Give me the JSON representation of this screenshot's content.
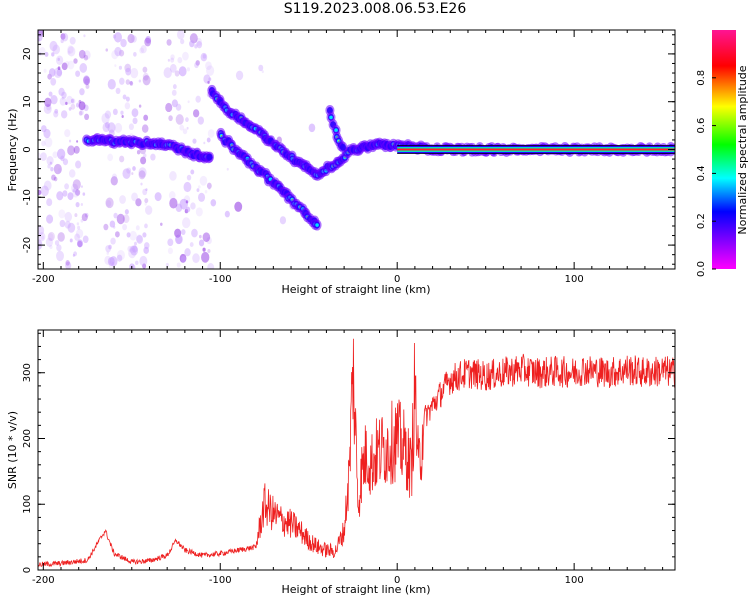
{
  "title": "S119.2023.008.06.53.E26",
  "chart_data": [
    {
      "type": "heatmap",
      "xlabel": "Height of straight line (km)",
      "ylabel": "Frequency (Hz)",
      "xlim": [
        -203,
        157
      ],
      "ylim": [
        -25,
        25
      ],
      "xticks": [
        -200,
        -100,
        0,
        100
      ],
      "yticks": [
        -20,
        -10,
        0,
        10,
        20
      ],
      "grid": false,
      "colorbar": {
        "label": "Normalized spectral amplitude",
        "range": [
          0,
          1
        ],
        "ticks": [
          "0.0",
          "0.2",
          "0.4",
          "0.6",
          "0.8"
        ],
        "colors": [
          "#ff00ff",
          "#8000ff",
          "#0000ff",
          "#00ffff",
          "#00ff00",
          "#ffff00",
          "#ff0000",
          "#ff1493"
        ]
      },
      "ridges": [
        {
          "x": [
            -175,
            -150,
            -130,
            -115,
            -105
          ],
          "y": [
            2,
            1.5,
            1,
            -1,
            -2
          ]
        },
        {
          "x": [
            -105,
            -95,
            -80,
            -65,
            -55,
            -45
          ],
          "y": [
            12,
            8,
            4,
            0,
            -3,
            -5
          ]
        },
        {
          "x": [
            -100,
            -85,
            -70,
            -55,
            -45
          ],
          "y": [
            3,
            -2,
            -7,
            -12,
            -16
          ]
        },
        {
          "x": [
            -45,
            -35,
            -25,
            -10,
            0,
            20,
            50,
            80,
            100,
            157
          ],
          "y": [
            -5,
            -3,
            0,
            1,
            1,
            0,
            0,
            0,
            0,
            0
          ]
        },
        {
          "x": [
            -38,
            -35,
            -30
          ],
          "y": [
            8,
            4,
            0
          ]
        }
      ]
    },
    {
      "type": "line",
      "xlabel": "Height of straight line (km)",
      "ylabel": "SNR (10 * v/v)",
      "xlim": [
        -203,
        157
      ],
      "ylim": [
        0,
        365
      ],
      "xticks": [
        -200,
        -100,
        0,
        100
      ],
      "yticks": [
        0,
        100,
        200,
        300
      ],
      "grid": false,
      "series": [
        {
          "color": "#ee2020",
          "x": [
            -203,
            -190,
            -175,
            -165,
            -160,
            -150,
            -140,
            -130,
            -125,
            -120,
            -110,
            -100,
            -90,
            -80,
            -75,
            -70,
            -65,
            -60,
            -55,
            -50,
            -45,
            -40,
            -35,
            -30,
            -27,
            -25,
            -22,
            -20,
            -17,
            -15,
            -12,
            -10,
            -5,
            0,
            5,
            8,
            10,
            12,
            15,
            20,
            25,
            30,
            40,
            50,
            60,
            70,
            80,
            90,
            100,
            105,
            110,
            120,
            130,
            140,
            150,
            157
          ],
          "y": [
            8,
            10,
            15,
            60,
            25,
            12,
            14,
            22,
            45,
            30,
            22,
            25,
            30,
            35,
            100,
            85,
            75,
            70,
            60,
            45,
            35,
            30,
            28,
            60,
            150,
            310,
            100,
            150,
            180,
            160,
            175,
            180,
            190,
            200,
            180,
            150,
            280,
            150,
            230,
            250,
            270,
            290,
            300,
            295,
            300,
            305,
            300,
            302,
            300,
            305,
            303,
            300,
            305,
            300,
            303,
            300
          ]
        }
      ]
    }
  ]
}
